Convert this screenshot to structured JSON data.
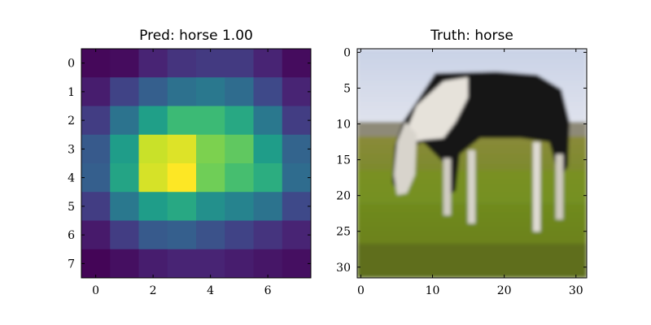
{
  "chart_data": [
    {
      "type": "heatmap",
      "title": "Pred: horse 1.00",
      "xlabel": "",
      "ylabel": "",
      "colormap": "viridis",
      "xticks": [
        0,
        2,
        4,
        6
      ],
      "yticks": [
        0,
        1,
        2,
        3,
        4,
        5,
        6,
        7
      ],
      "xlim": [
        -0.5,
        7.5
      ],
      "ylim": [
        7.5,
        -0.5
      ],
      "grid": false,
      "values": [
        [
          0.02,
          0.03,
          0.1,
          0.15,
          0.17,
          0.17,
          0.1,
          0.03
        ],
        [
          0.08,
          0.2,
          0.3,
          0.37,
          0.4,
          0.35,
          0.22,
          0.1
        ],
        [
          0.18,
          0.38,
          0.56,
          0.68,
          0.68,
          0.6,
          0.4,
          0.18
        ],
        [
          0.28,
          0.55,
          0.92,
          0.95,
          0.8,
          0.75,
          0.55,
          0.32
        ],
        [
          0.3,
          0.58,
          0.94,
          1.0,
          0.78,
          0.7,
          0.62,
          0.35
        ],
        [
          0.18,
          0.4,
          0.55,
          0.6,
          0.5,
          0.45,
          0.38,
          0.22
        ],
        [
          0.07,
          0.18,
          0.28,
          0.3,
          0.25,
          0.2,
          0.15,
          0.1
        ],
        [
          0.01,
          0.04,
          0.08,
          0.1,
          0.1,
          0.08,
          0.06,
          0.04
        ]
      ]
    },
    {
      "type": "image",
      "title": "Truth: horse",
      "xlabel": "",
      "ylabel": "",
      "subject": "black and white horse grazing on green grass",
      "xticks": [
        0,
        10,
        20,
        30
      ],
      "yticks": [
        0,
        5,
        10,
        15,
        20,
        25,
        30
      ],
      "xlim": [
        -0.5,
        31.5
      ],
      "ylim": [
        31.5,
        -0.5
      ],
      "grid": false
    }
  ]
}
